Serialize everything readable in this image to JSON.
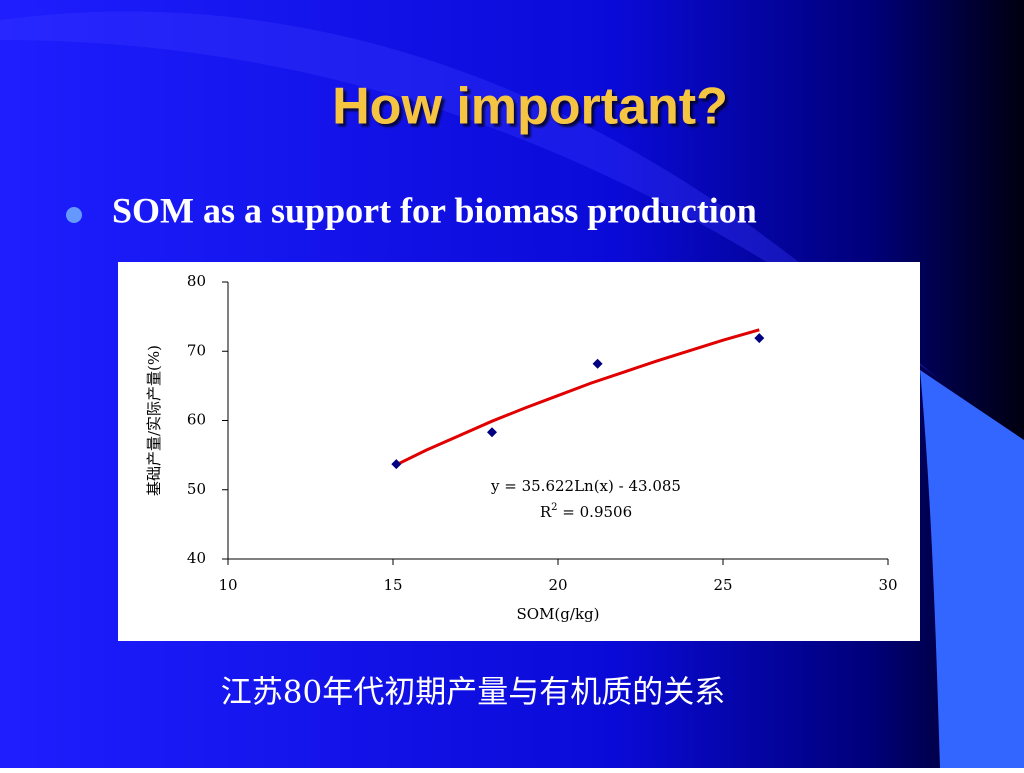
{
  "slide": {
    "title": "How important?",
    "bullet": "SOM as a support for biomass production",
    "caption": "江苏80年代初期产量与有机质的关系"
  },
  "chart_data": {
    "type": "scatter",
    "x_label": "SOM(g/kg)",
    "y_label": "基础产量/实际产量(%)",
    "x": [
      15.1,
      18,
      21.2,
      26.1
    ],
    "values": [
      53.7,
      58.3,
      68.2,
      71.9
    ],
    "color": "#000080",
    "trendline": {
      "color": "#e00000",
      "x": [
        15.1,
        16,
        17,
        18,
        19,
        20,
        21,
        22,
        23,
        24,
        25,
        26.1
      ],
      "y": [
        53.6,
        55.7,
        57.8,
        59.9,
        61.8,
        63.6,
        65.4,
        67.0,
        68.6,
        70.1,
        71.6,
        73.1
      ]
    },
    "equation": "y = 35.622Ln(x) - 43.085",
    "r2": [
      "R",
      "2",
      " = 0.9506"
    ],
    "xlim": [
      10,
      30
    ],
    "xticks": [
      10,
      15,
      20,
      25,
      30
    ],
    "ylim": [
      40,
      80
    ],
    "yticks": [
      40,
      50,
      60,
      70,
      80
    ],
    "grid": false
  }
}
